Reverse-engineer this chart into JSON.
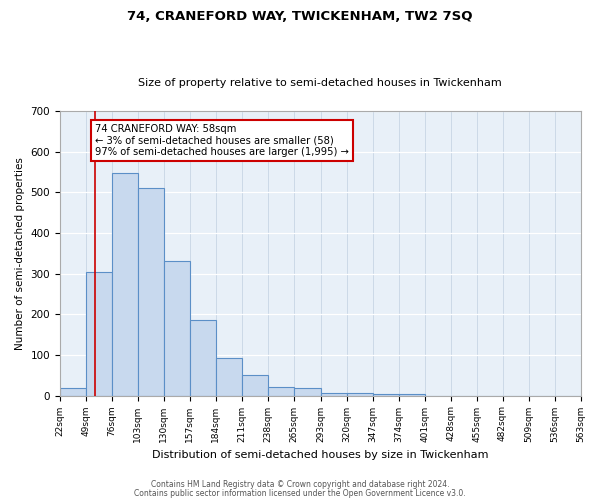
{
  "title1": "74, CRANEFORD WAY, TWICKENHAM, TW2 7SQ",
  "title2": "Size of property relative to semi-detached houses in Twickenham",
  "xlabel": "Distribution of semi-detached houses by size in Twickenham",
  "ylabel": "Number of semi-detached properties",
  "bar_edges": [
    22,
    49,
    76,
    103,
    130,
    157,
    184,
    211,
    238,
    265,
    293,
    320,
    347,
    374,
    401,
    428,
    455,
    482,
    509,
    536,
    563
  ],
  "bar_heights": [
    18,
    303,
    547,
    510,
    330,
    185,
    93,
    50,
    22,
    18,
    7,
    7,
    5,
    5,
    0,
    0,
    0,
    0,
    0,
    0
  ],
  "tick_labels": [
    "22sqm",
    "49sqm",
    "76sqm",
    "103sqm",
    "130sqm",
    "157sqm",
    "184sqm",
    "211sqm",
    "238sqm",
    "265sqm",
    "293sqm",
    "320sqm",
    "347sqm",
    "374sqm",
    "401sqm",
    "428sqm",
    "455sqm",
    "482sqm",
    "509sqm",
    "536sqm",
    "563sqm"
  ],
  "bar_color": "#c8d9ee",
  "bar_edge_color": "#5b8fc7",
  "property_line_x": 58,
  "property_line_color": "#cc0000",
  "annotation_text": "74 CRANEFORD WAY: 58sqm\n← 3% of semi-detached houses are smaller (58)\n97% of semi-detached houses are larger (1,995) →",
  "ylim": [
    0,
    700
  ],
  "yticks": [
    0,
    100,
    200,
    300,
    400,
    500,
    600,
    700
  ],
  "footer_line1": "Contains HM Land Registry data © Crown copyright and database right 2024.",
  "footer_line2": "Contains public sector information licensed under the Open Government Licence v3.0.",
  "fig_bg_color": "#ffffff",
  "plot_bg_color": "#e8f0f8"
}
